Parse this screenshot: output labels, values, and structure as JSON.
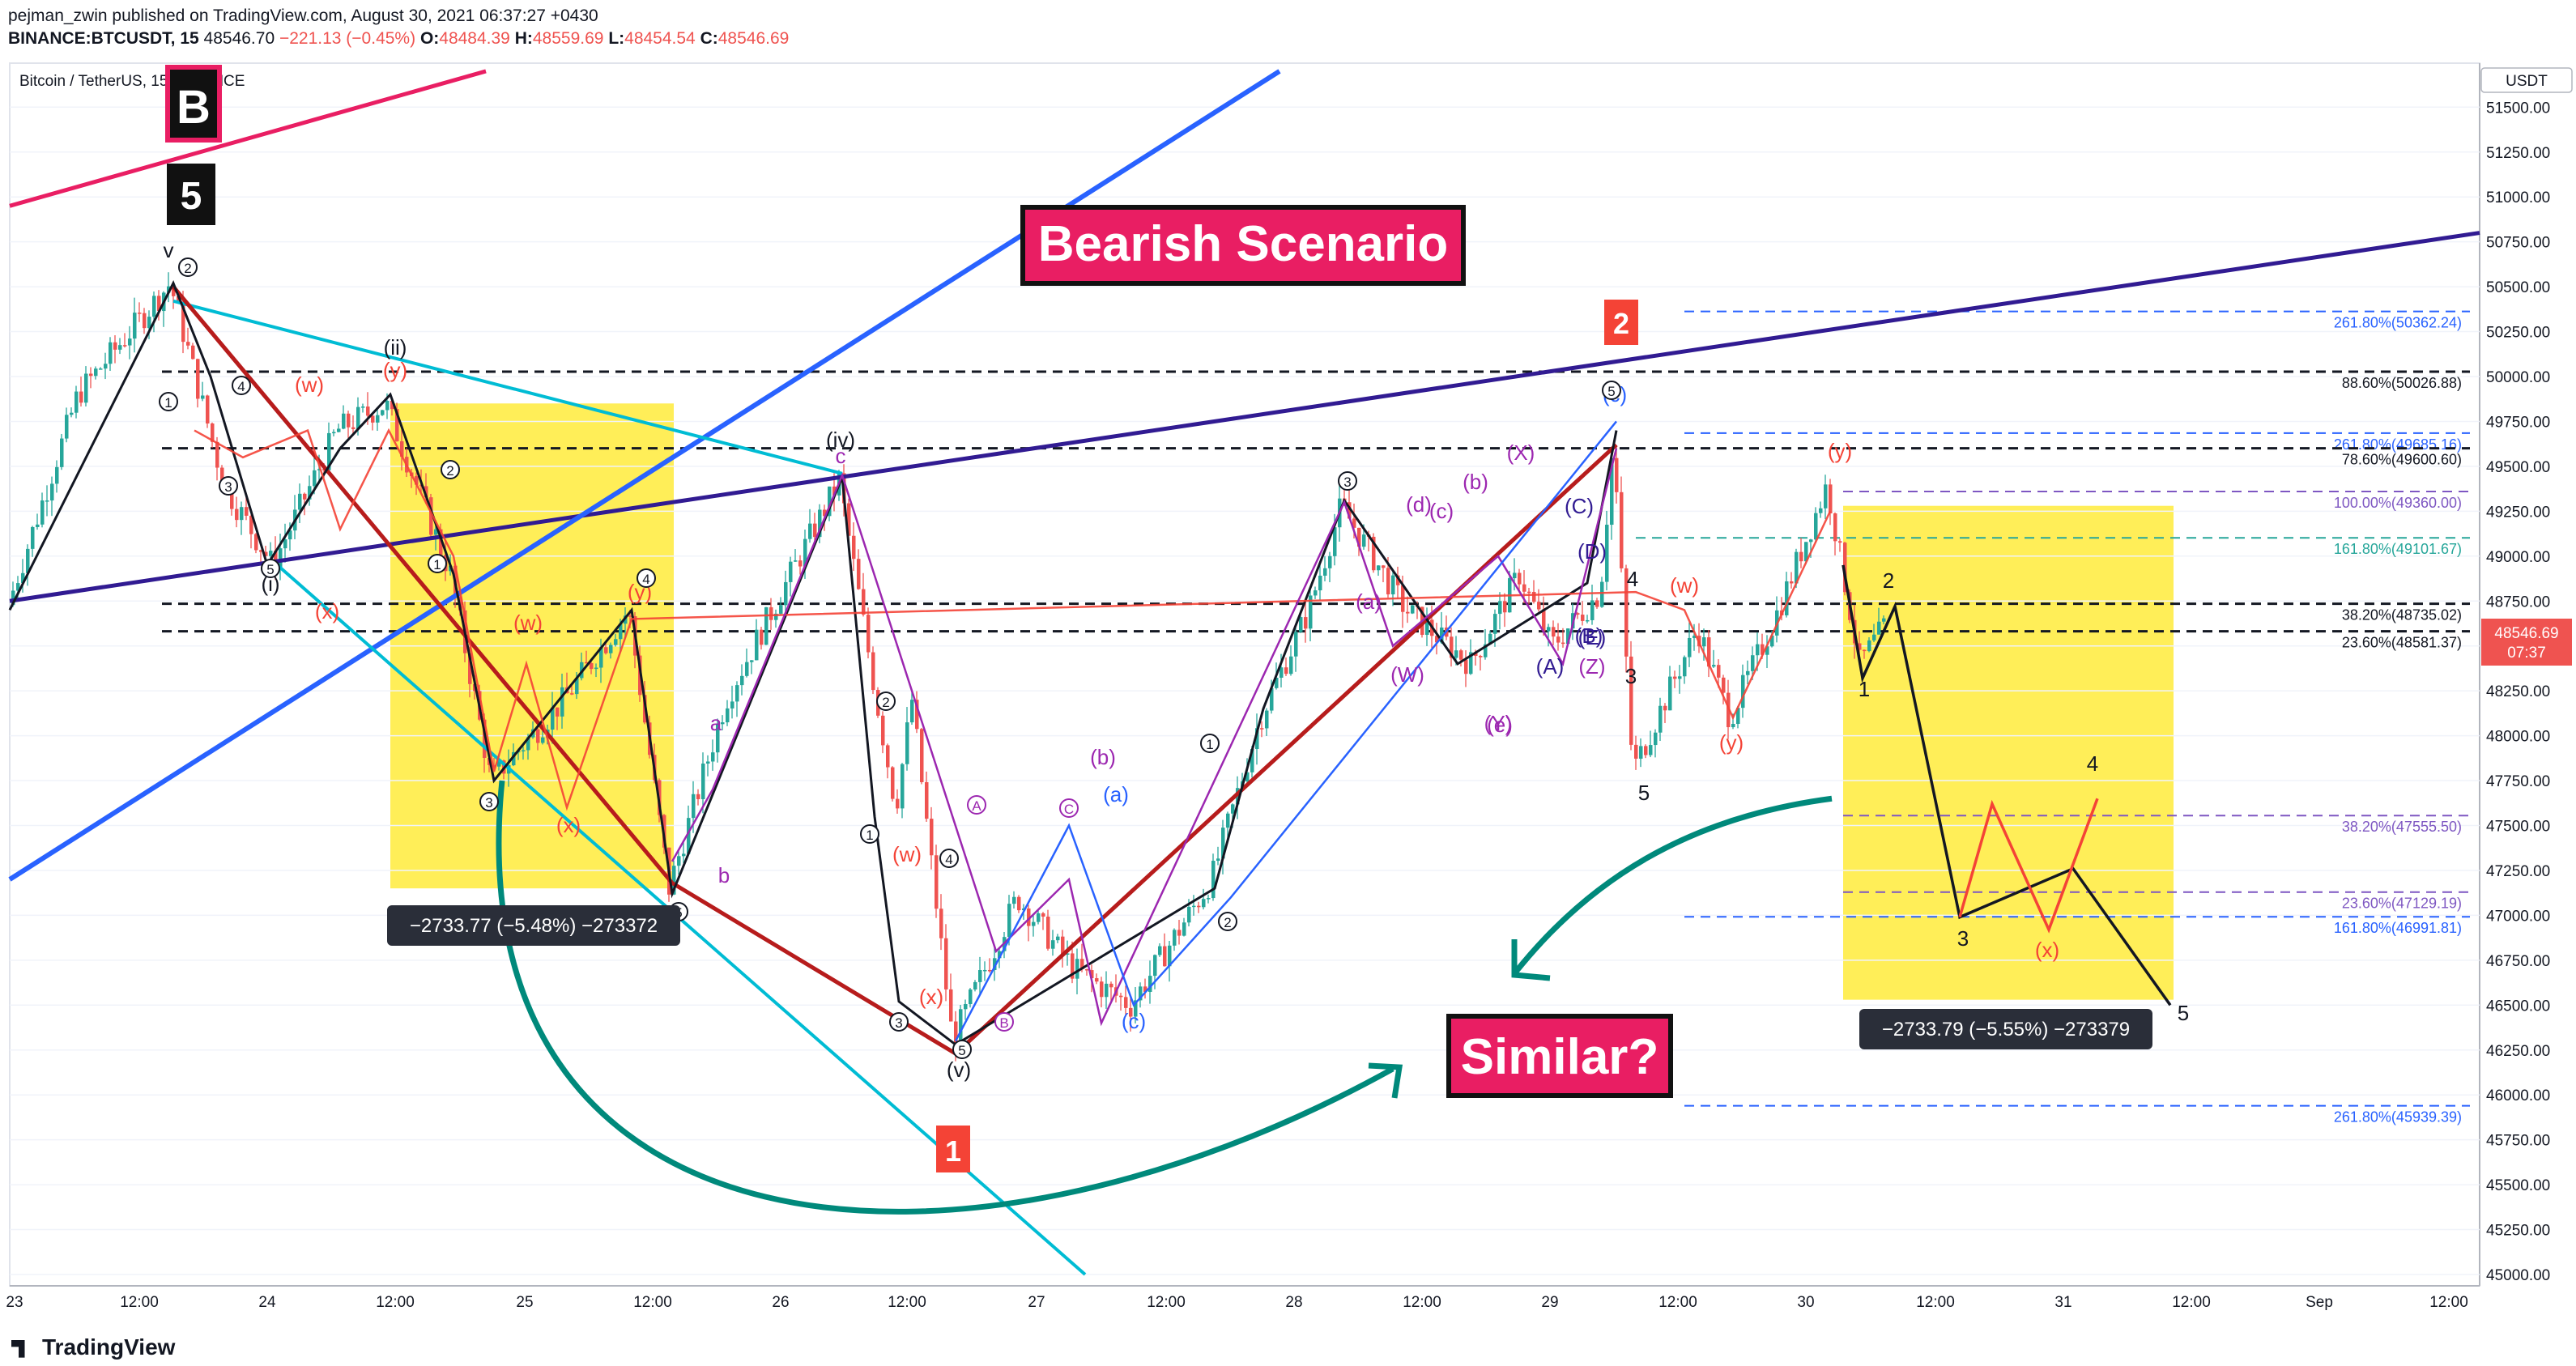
{
  "header": {
    "line1": "pejman_zwin published on TradingView.com, August 30, 2021 06:37:27 +0430",
    "symbol": "BINANCE:BTCUSDT, 15",
    "last": "48546.70",
    "change": "−221.13 (−0.45%)",
    "o_label": "O:",
    "o": "48484.39",
    "h_label": "H:",
    "h": "48559.69",
    "l_label": "L:",
    "l": "48454.54",
    "c_label": "C:",
    "c": "48546.69"
  },
  "legend_title": "Bitcoin / TetherUS, 15, BINANCE",
  "currency": "USDT",
  "price_badge": {
    "price": "48546.69",
    "time": "07:37"
  },
  "footer": {
    "brand": "TradingView"
  },
  "colors": {
    "up": "#26a69a",
    "down": "#ef5350",
    "wave": "#131722",
    "red_wave": "#f44336",
    "magenta": "#9c27b0",
    "blue_line": "#2962ff",
    "cyan": "#00bcd4",
    "navy": "#311b92",
    "crimson": "#e91e63",
    "teal_arrow": "#00897b",
    "yellow": "#ffeb3b",
    "darkred": "#b71c1c"
  },
  "chart_data": {
    "type": "candlestick",
    "ylim": [
      44900,
      51700
    ],
    "y_ticks": [
      51500,
      51250,
      51000,
      50750,
      50500,
      50250,
      50000,
      49750,
      49500,
      49250,
      49000,
      48750,
      48500,
      48250,
      48000,
      47750,
      47500,
      47250,
      47000,
      46750,
      46500,
      46250,
      46000,
      45750,
      45500,
      45250,
      45000
    ],
    "x_ticks": [
      "23",
      "12:00",
      "24",
      "12:00",
      "25",
      "12:00",
      "26",
      "12:00",
      "27",
      "12:00",
      "28",
      "12:00",
      "29",
      "12:00",
      "30",
      "12:00",
      "31",
      "12:00",
      "Sep",
      "12:00"
    ],
    "fib_levels": [
      {
        "label": "261.80%(50362.24)",
        "price": 50362.24,
        "style": "blue"
      },
      {
        "label": "88.60%(50026.88)",
        "price": 50026.88,
        "style": "black"
      },
      {
        "label": "261.80%(49685.16)",
        "price": 49685.16,
        "style": "blue"
      },
      {
        "label": "78.60%(49600.60)",
        "price": 49600.6,
        "style": "black"
      },
      {
        "label": "100.00%(49360.00)",
        "price": 49360.0,
        "style": "purple"
      },
      {
        "label": "161.80%(49101.67)",
        "price": 49101.67,
        "style": "teal"
      },
      {
        "label": "38.20%(48735.02)",
        "price": 48735.02,
        "style": "black"
      },
      {
        "label": "23.60%(48581.37)",
        "price": 48581.37,
        "style": "black"
      },
      {
        "label": "38.20%(47555.50)",
        "price": 47555.5,
        "style": "purple"
      },
      {
        "label": "23.60%(47129.19)",
        "price": 47129.19,
        "style": "purple"
      },
      {
        "label": "161.80%(46991.81)",
        "price": 46991.81,
        "style": "blue"
      },
      {
        "label": "261.80%(45939.39)",
        "price": 45939.39,
        "style": "blue"
      }
    ],
    "measure_labels": [
      "−2733.77 (−5.48%) −273372",
      "−2733.79 (−5.55%) −273379"
    ],
    "annotations": {
      "title": "Bearish Scenario",
      "similar": "Similar?",
      "box_b": "B",
      "box_5": "5",
      "box_1": "1",
      "box_2": "2"
    },
    "wave_labels_black": [
      "v",
      "(ii)",
      "(iv)",
      "(i)",
      "(v)"
    ],
    "wave_labels_red": [
      "(w)",
      "(y)",
      "(x)",
      "(w)",
      "(y)",
      "(x)",
      "(w)",
      "(x)",
      "(y)",
      "(w)",
      "(y)",
      "(x)"
    ],
    "wave_labels_purple": [
      "(X)",
      "(b)",
      "(d)",
      "(a)",
      "(e)",
      "(c)",
      "(W)",
      "(Y)",
      "(A)",
      "(B)",
      "(C)",
      "(D)",
      "(E)",
      "(Z)",
      "a",
      "b",
      "c"
    ],
    "wave_labels_blue": [
      "(c)",
      "(a)",
      "(b)",
      "(c)"
    ],
    "wave_labels_small": [
      "1",
      "2",
      "3",
      "4",
      "5",
      "A",
      "B",
      "C"
    ]
  }
}
